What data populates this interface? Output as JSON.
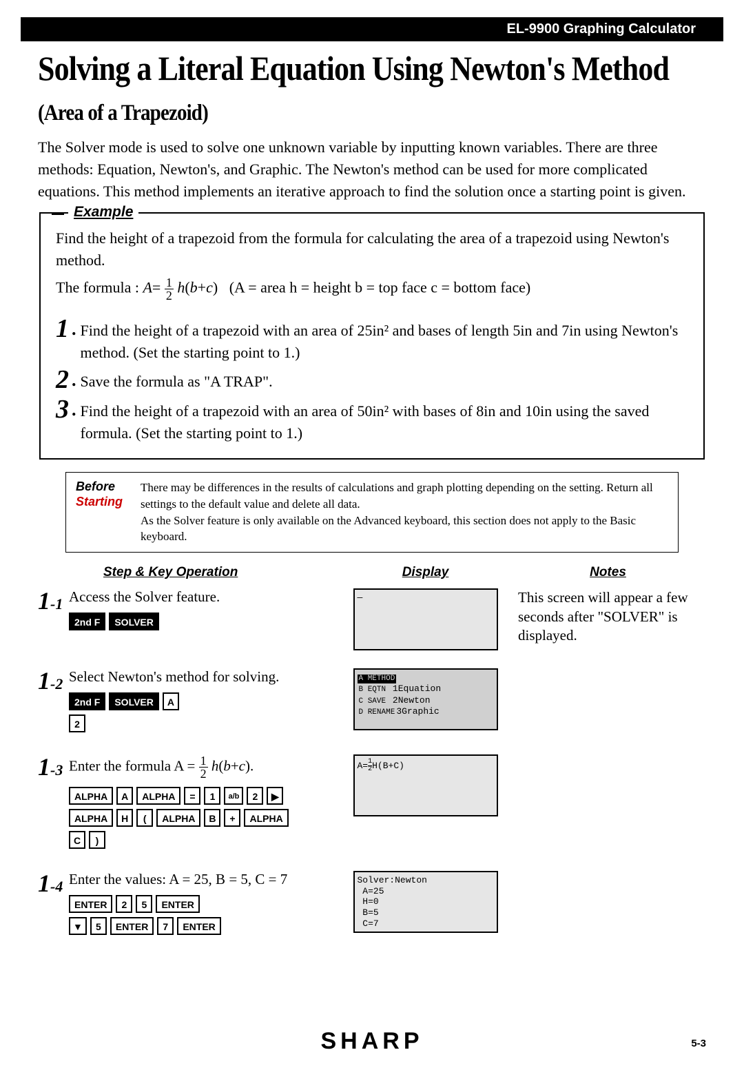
{
  "header": {
    "product": "EL-9900 Graphing Calculator"
  },
  "title": {
    "main": "Solving a Literal Equation Using Newton's Method",
    "sub": "(Area of a Trapezoid)"
  },
  "intro": "The Solver mode is used to solve one unknown variable by inputting known variables. There are three methods: Equation, Newton's, and Graphic. The Newton's method can be used for more complicated equations. This method implements an iterative approach to find the solution once a starting point is given.",
  "example": {
    "label": "Example",
    "lead": "Find the height of a trapezoid from the formula for calculating the area of a trapezoid using Newton's method.",
    "formula_prefix": "The formula : ",
    "formula_defs": "(A = area    h = height     b = top face     c = bottom face)",
    "tasks": [
      "Find the height of a trapezoid with an area of 25in² and bases of length 5in and 7in using Newton's method. (Set the starting point to 1.)",
      "Save the formula as \"A TRAP\".",
      "Find the height of a trapezoid with an area of 50in² with bases of 8in and 10in using the saved formula. (Set the starting point to 1.)"
    ]
  },
  "before": {
    "label1": "Before",
    "label2": "Starting",
    "text": "There may be differences in the results of calculations and graph plotting depending on the setting. Return all settings to the default value and delete all data.\nAs the Solver feature is only available on the Advanced keyboard, this section does not apply to the Basic keyboard."
  },
  "columns": {
    "c1": "Step & Key Operation",
    "c2": "Display",
    "c3": "Notes"
  },
  "steps": [
    {
      "num": "1",
      "sub": "-1",
      "desc": "Access the Solver feature.",
      "keys_rows": [
        [
          {
            "t": "2nd F",
            "cls": "black wide"
          },
          {
            "t": "SOLVER",
            "cls": "black wide"
          }
        ]
      ],
      "lcd": {
        "cls": "light",
        "lines": [
          "—"
        ]
      },
      "notes": "This screen will appear a few seconds after \"SOLVER\" is displayed."
    },
    {
      "num": "1",
      "sub": "-2",
      "desc": "Select Newton's method for solving.",
      "keys_rows": [
        [
          {
            "t": "2nd F",
            "cls": "black wide"
          },
          {
            "t": "SOLVER",
            "cls": "black wide"
          },
          {
            "t": "A",
            "cls": ""
          }
        ],
        [
          {
            "t": "2",
            "cls": ""
          }
        ]
      ],
      "lcd": {
        "cls": "",
        "html": "<span class='lcd-menu'>A METHOD</span><br><span class='lcd-menu' style='background:none;color:#000'>B EQTN</span>  1Equation<br><span class='lcd-menu' style='background:none;color:#000'>C SAVE</span>  2Newton<br><span class='lcd-menu' style='background:none;color:#000'>D RENAME</span>3Graphic"
      },
      "notes": ""
    },
    {
      "num": "1",
      "sub": "-3",
      "desc_html": "Enter the formula A = <span class='frac'><span class='num'>1</span><span class='den'>2</span></span> <span class='italic'>h</span>(<span class='italic'>b</span>+<span class='italic'>c</span>).",
      "keys_rows": [
        [
          {
            "t": "ALPHA",
            "cls": "wide"
          },
          {
            "t": "A",
            "cls": ""
          },
          {
            "t": "ALPHA",
            "cls": "wide"
          },
          {
            "t": "=",
            "cls": ""
          },
          {
            "t": "1",
            "cls": ""
          },
          {
            "t": "a/b",
            "cls": "subkey"
          },
          {
            "t": "2",
            "cls": ""
          },
          {
            "t": "▶",
            "cls": "arrow"
          }
        ],
        [
          {
            "t": "ALPHA",
            "cls": "wide"
          },
          {
            "t": "H",
            "cls": ""
          },
          {
            "t": "(",
            "cls": ""
          },
          {
            "t": "ALPHA",
            "cls": "wide"
          },
          {
            "t": "B",
            "cls": ""
          },
          {
            "t": "+",
            "cls": ""
          },
          {
            "t": "ALPHA",
            "cls": "wide"
          }
        ],
        [
          {
            "t": "C",
            "cls": ""
          },
          {
            "t": ")",
            "cls": ""
          }
        ]
      ],
      "lcd": {
        "cls": "light",
        "html": "A=<span style='display:inline-block;vertical-align:middle;text-align:center;font-size:10px;line-height:1'><span style='display:block;border-bottom:1px solid #000'>1</span><span style='display:block'>2</span></span>H(B+C)"
      },
      "notes": ""
    },
    {
      "num": "1",
      "sub": "-4",
      "desc": "Enter the values: A = 25, B = 5, C = 7",
      "keys_rows": [
        [
          {
            "t": "ENTER",
            "cls": "wide"
          },
          {
            "t": "2",
            "cls": ""
          },
          {
            "t": "5",
            "cls": ""
          },
          {
            "t": "ENTER",
            "cls": "wide"
          }
        ],
        [
          {
            "t": "▼",
            "cls": "arrow"
          },
          {
            "t": "5",
            "cls": ""
          },
          {
            "t": "ENTER",
            "cls": "wide"
          },
          {
            "t": "7",
            "cls": ""
          },
          {
            "t": "ENTER",
            "cls": "wide"
          }
        ]
      ],
      "lcd": {
        "cls": "light",
        "html": "Solver:Newton<br>&nbsp;A=25<br>&nbsp;H=0<br>&nbsp;B=5<br>&nbsp;C=7"
      },
      "notes": ""
    }
  ],
  "footer": {
    "brand": "SHARP",
    "page": "5-3"
  }
}
